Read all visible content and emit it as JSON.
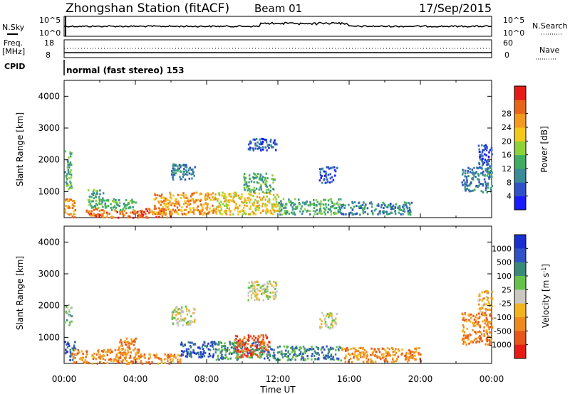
{
  "header": {
    "station": "Zhongshan Station (fitACF)",
    "beam": "Beam 01",
    "date": "17/Sep/2015"
  },
  "strips": {
    "nsky_label": "N.Sky",
    "nsearch_label": "N.Search",
    "noise_ticks": [
      "10^5",
      "10^0"
    ],
    "freq_label": "Freq.",
    "freq_unit": "[MHz]",
    "freq_ticks": [
      "18",
      "8"
    ],
    "nave_label": "Nave",
    "nave_ticks": [
      "60",
      "0"
    ],
    "cpid_label": "CPID",
    "cpid_text": "normal (fast stereo) 153"
  },
  "chart_data": [
    {
      "type": "heatmap",
      "panel": "power",
      "ylabel": "Slant Range [km]",
      "xlabel": "",
      "x": [
        "00:00",
        "04:00",
        "08:00",
        "12:00",
        "16:00",
        "20:00",
        "00:00"
      ],
      "ylim": [
        180,
        4500
      ],
      "yticks": [
        1000,
        2000,
        3000,
        4000
      ],
      "colorbar": {
        "label": "Power [dB]",
        "ticks": [
          "4",
          "8",
          "12",
          "16",
          "20",
          "24",
          "28"
        ],
        "colors": [
          "#1a1aff",
          "#2f52c8",
          "#3a8a98",
          "#3fae62",
          "#8ed23a",
          "#f3c81a",
          "#f39a1e",
          "#ea6418",
          "#e81b14"
        ]
      },
      "regions": [
        {
          "t": [
            0.0,
            0.6
          ],
          "r": [
            200,
            800
          ],
          "level": 6
        },
        {
          "t": [
            0.0,
            0.4
          ],
          "r": [
            1100,
            2300
          ],
          "level": 3
        },
        {
          "t": [
            1.2,
            2.3
          ],
          "r": [
            200,
            500
          ],
          "level": 7
        },
        {
          "t": [
            1.3,
            2.3
          ],
          "r": [
            500,
            1100
          ],
          "level": 3
        },
        {
          "t": [
            2.0,
            4.5
          ],
          "r": [
            200,
            450
          ],
          "level": 7
        },
        {
          "t": [
            2.3,
            4.0
          ],
          "r": [
            450,
            800
          ],
          "level": 3
        },
        {
          "t": [
            4.0,
            6.0
          ],
          "r": [
            200,
            500
          ],
          "level": 7
        },
        {
          "t": [
            5.0,
            8.5
          ],
          "r": [
            300,
            1000
          ],
          "level": 6
        },
        {
          "t": [
            6.0,
            7.3
          ],
          "r": [
            1400,
            1900
          ],
          "level": 2
        },
        {
          "t": [
            8.5,
            12.0
          ],
          "r": [
            300,
            1000
          ],
          "level": 5
        },
        {
          "t": [
            10.0,
            11.8
          ],
          "r": [
            1000,
            1600
          ],
          "level": 3
        },
        {
          "t": [
            10.3,
            11.9
          ],
          "r": [
            2300,
            2700
          ],
          "level": 1
        },
        {
          "t": [
            12.0,
            15.5
          ],
          "r": [
            300,
            800
          ],
          "level": 3
        },
        {
          "t": [
            14.3,
            15.3
          ],
          "r": [
            1300,
            1800
          ],
          "level": 1
        },
        {
          "t": [
            15.5,
            19.5
          ],
          "r": [
            300,
            700
          ],
          "level": 2
        },
        {
          "t": [
            22.3,
            24.0
          ],
          "r": [
            1000,
            1800
          ],
          "level": 2
        },
        {
          "t": [
            23.2,
            24.0
          ],
          "r": [
            1800,
            2500
          ],
          "level": 1
        }
      ]
    },
    {
      "type": "heatmap",
      "panel": "velocity",
      "ylabel": "Slant Range [km]",
      "xlabel": "Time UT",
      "x": [
        "00:00",
        "04:00",
        "08:00",
        "12:00",
        "16:00",
        "20:00",
        "00:00"
      ],
      "ylim": [
        180,
        4500
      ],
      "yticks": [
        1000,
        2000,
        3000,
        4000
      ],
      "colorbar": {
        "label": "Velocity [m s^-1]",
        "ticks": [
          "1000",
          "500",
          "100",
          "25",
          "-25",
          "-100",
          "-500",
          "-1000"
        ],
        "colors": [
          "#1a2fd0",
          "#2f52c8",
          "#3a8a7a",
          "#66c24a",
          "#c8c8c0",
          "#f3b41e",
          "#f08a1e",
          "#e8561a",
          "#e81b14"
        ]
      },
      "regions": [
        {
          "t": [
            0.0,
            0.6
          ],
          "r": [
            300,
            900
          ],
          "level": 1
        },
        {
          "t": [
            0.0,
            0.4
          ],
          "r": [
            1400,
            2100
          ],
          "level": 3
        },
        {
          "t": [
            0.4,
            4.2
          ],
          "r": [
            200,
            650
          ],
          "level": 6
        },
        {
          "t": [
            3.0,
            4.0
          ],
          "r": [
            650,
            1000
          ],
          "level": 6
        },
        {
          "t": [
            4.2,
            6.5
          ],
          "r": [
            200,
            500
          ],
          "level": 6
        },
        {
          "t": [
            6.0,
            7.3
          ],
          "r": [
            1400,
            2000
          ],
          "level": 4
        },
        {
          "t": [
            6.5,
            8.5
          ],
          "r": [
            400,
            900
          ],
          "level": 1
        },
        {
          "t": [
            8.5,
            11.0
          ],
          "r": [
            300,
            900
          ],
          "level": 2
        },
        {
          "t": [
            9.5,
            11.5
          ],
          "r": [
            400,
            1100
          ],
          "level": 7
        },
        {
          "t": [
            10.3,
            11.9
          ],
          "r": [
            2200,
            2800
          ],
          "level": 4
        },
        {
          "t": [
            11.0,
            15.5
          ],
          "r": [
            300,
            750
          ],
          "level": 2
        },
        {
          "t": [
            14.3,
            15.3
          ],
          "r": [
            1300,
            1800
          ],
          "level": 4
        },
        {
          "t": [
            15.5,
            20.0
          ],
          "r": [
            250,
            700
          ],
          "level": 6
        },
        {
          "t": [
            22.3,
            24.0
          ],
          "r": [
            800,
            1800
          ],
          "level": 6
        },
        {
          "t": [
            23.2,
            24.0
          ],
          "r": [
            1800,
            2500
          ],
          "level": 5
        }
      ]
    }
  ]
}
